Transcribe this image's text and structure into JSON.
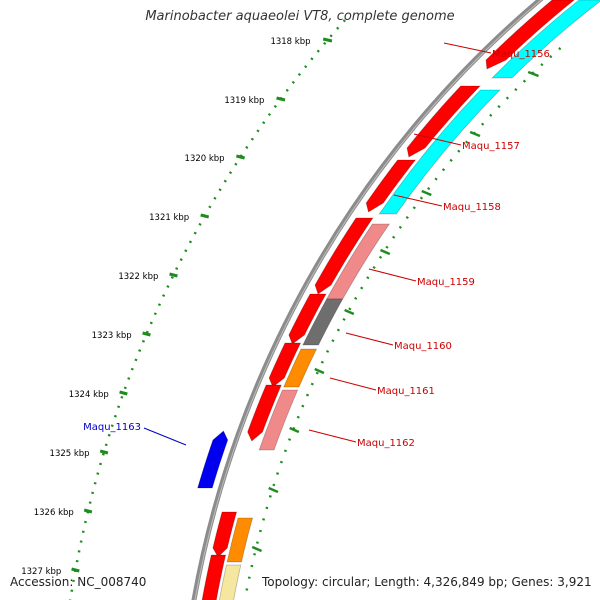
{
  "title": "Marinobacter aquaeolei VT8, complete genome",
  "accession": "Accession: NC_008740",
  "topology": "Topology: circular; Length: 4,326,849 bp; Genes: 3,921",
  "colors": {
    "backbone": "#8c8c8c",
    "tick": "#1e8c1e",
    "gene_label": "#cc0000",
    "highlight_label": "#0000cc",
    "red": "#ff0000",
    "cyan": "#00ffff",
    "salmon": "#f08a8a",
    "gray": "#6e6e6e",
    "orange": "#ff8c00",
    "tan": "#f5e6a0",
    "blue": "#0000ee"
  },
  "kbp_ticks": [
    "1318 kbp",
    "1319 kbp",
    "1320 kbp",
    "1321 kbp",
    "1322 kbp",
    "1323 kbp",
    "1324 kbp",
    "1325 kbp",
    "1326 kbp",
    "1327 kbp"
  ],
  "gene_labels": [
    "Maqu_1156",
    "Maqu_1157",
    "Maqu_1158",
    "Maqu_1159",
    "Maqu_1160",
    "Maqu_1161",
    "Maqu_1162"
  ],
  "highlight_label": "Maqu_1163"
}
